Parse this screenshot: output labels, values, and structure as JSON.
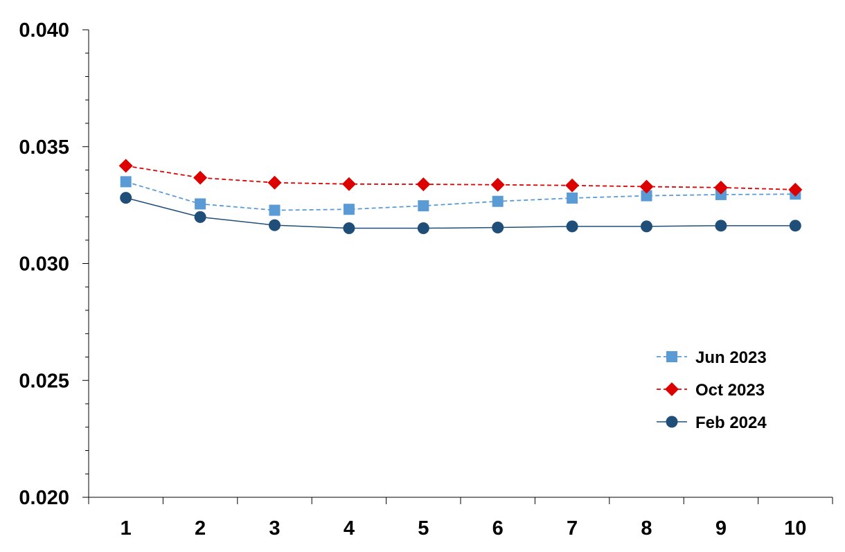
{
  "chart_data": {
    "type": "line",
    "title": "",
    "xlabel": "",
    "ylabel": "",
    "categories": [
      "1",
      "2",
      "3",
      "4",
      "5",
      "6",
      "7",
      "8",
      "9",
      "10"
    ],
    "ylim": [
      0.02,
      0.04
    ],
    "y_ticks": [
      "0.020",
      "0.025",
      "0.030",
      "0.035",
      "0.040"
    ],
    "grid": false,
    "legend_position": "right",
    "series": [
      {
        "name": "Jun 2023",
        "color": "#5b9bd5",
        "marker": "square",
        "line": "dashed",
        "values": [
          0.0335,
          0.03255,
          0.03228,
          0.03232,
          0.03247,
          0.03266,
          0.0328,
          0.0329,
          0.03295,
          0.03297
        ]
      },
      {
        "name": "Oct 2023",
        "color": "#dc0000",
        "marker": "diamond",
        "line": "dashed",
        "values": [
          0.03418,
          0.03367,
          0.03346,
          0.0334,
          0.03339,
          0.03337,
          0.03334,
          0.03329,
          0.03325,
          0.03316
        ]
      },
      {
        "name": "Feb 2024",
        "color": "#1f4e79",
        "marker": "circle",
        "line": "solid",
        "values": [
          0.03281,
          0.03199,
          0.03164,
          0.03151,
          0.03151,
          0.03154,
          0.03159,
          0.03159,
          0.03162,
          0.03162
        ]
      }
    ]
  }
}
